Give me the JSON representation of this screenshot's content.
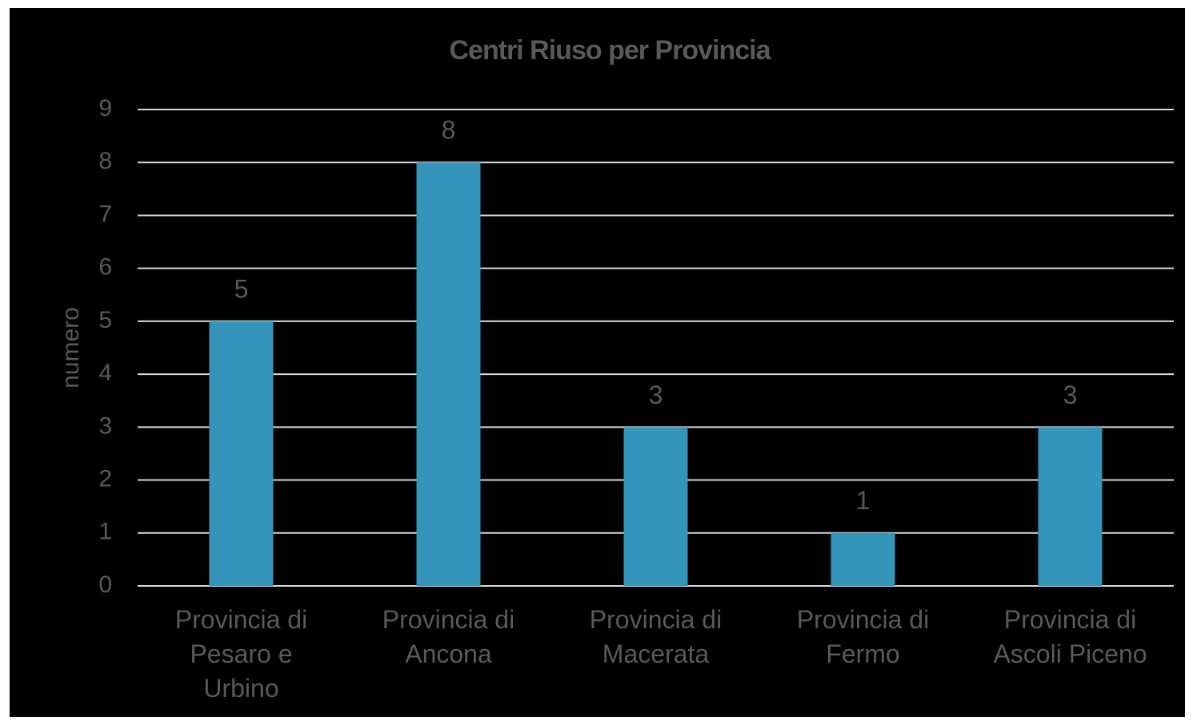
{
  "chart_data": {
    "type": "bar",
    "title": "Centri Riuso per Provincia",
    "y_label": "numero",
    "categories": [
      "Provincia di Pesaro e Urbino",
      "Provincia di Ancona",
      "Provincia di Macerata",
      "Provincia di Fermo",
      "Provincia di Ascoli Piceno"
    ],
    "values": [
      5,
      8,
      3,
      1,
      3
    ],
    "color": "#3494ba",
    "ylim": [
      0,
      9
    ],
    "yticks": [
      0,
      1,
      2,
      3,
      4,
      5,
      6,
      7,
      8,
      9
    ],
    "grid": true,
    "data_labels": true
  }
}
